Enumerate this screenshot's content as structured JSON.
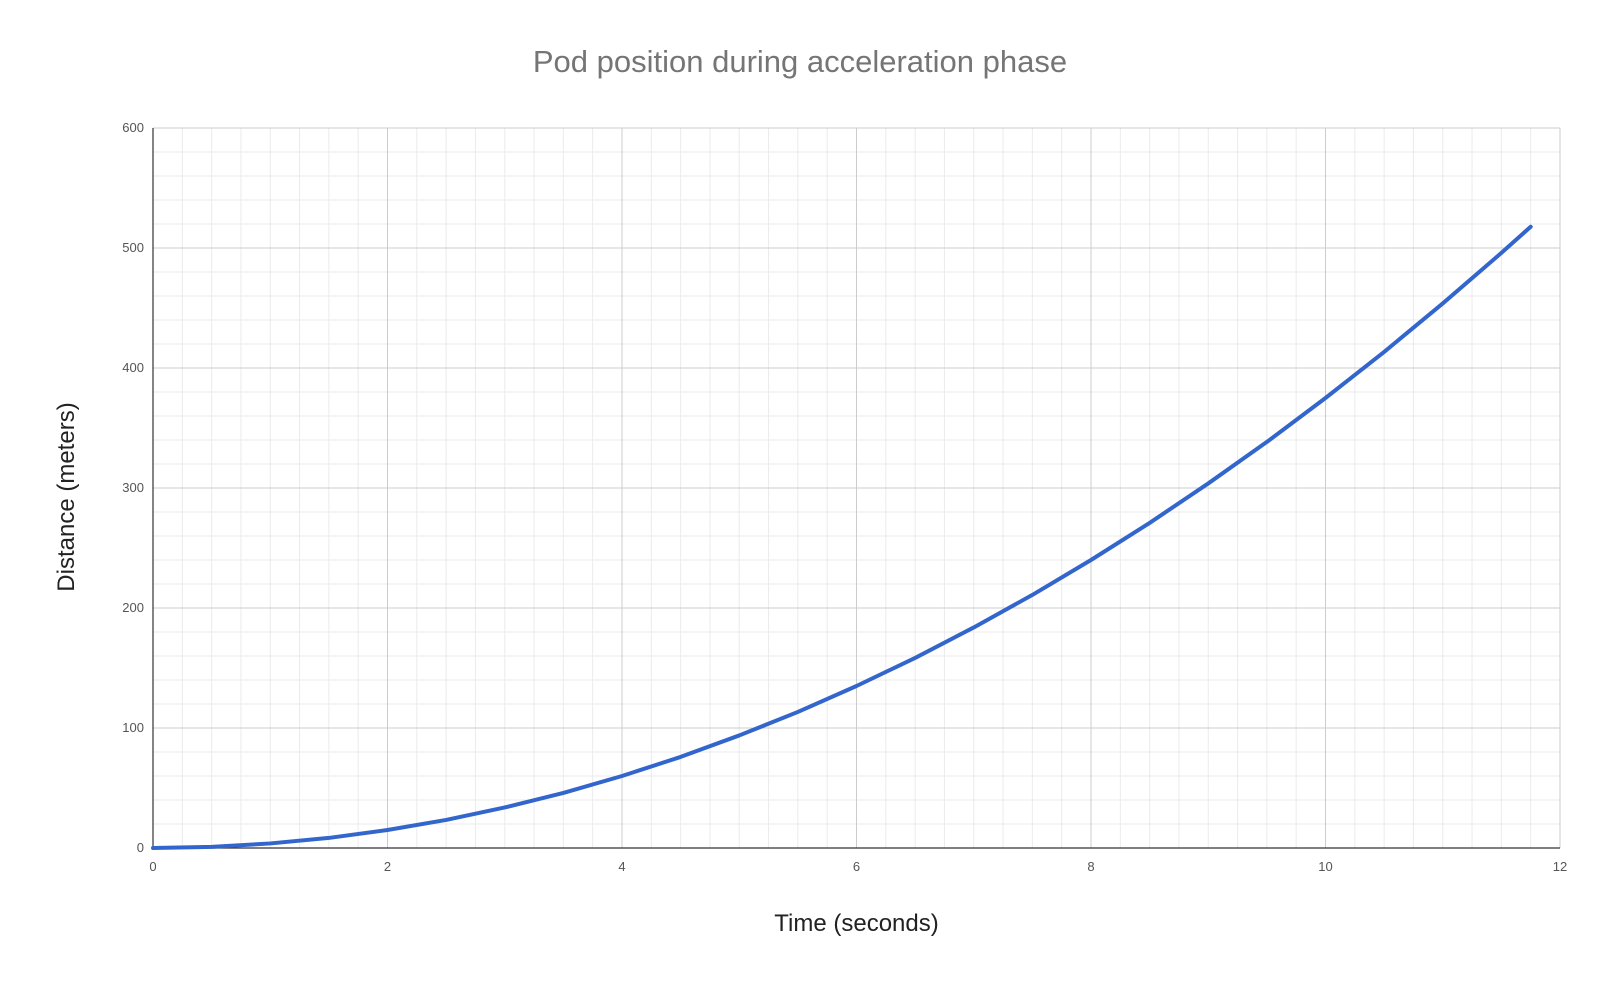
{
  "chart_data": {
    "type": "line",
    "title": "Pod position during acceleration phase",
    "xlabel": "Time (seconds)",
    "ylabel": "Distance (meters)",
    "xlim": [
      0,
      12
    ],
    "ylim": [
      0,
      600
    ],
    "x_ticks": [
      "0",
      "2",
      "4",
      "6",
      "8",
      "10",
      "12"
    ],
    "y_ticks": [
      "0",
      "100",
      "200",
      "300",
      "400",
      "500",
      "600"
    ],
    "grid": true,
    "legend": "none",
    "series": [
      {
        "color": "#3366cc",
        "x": [
          0,
          0.5,
          1,
          1.5,
          2,
          2.5,
          3,
          3.5,
          4,
          4.5,
          5,
          5.5,
          6,
          6.5,
          7,
          7.5,
          8,
          8.5,
          9,
          9.5,
          10,
          10.5,
          11,
          11.5,
          11.75
        ],
        "y": [
          0,
          0.9,
          3.8,
          8.4,
          15,
          23.4,
          33.8,
          45.9,
          60,
          75.9,
          93.8,
          113.4,
          135,
          158.4,
          183.8,
          210.9,
          240,
          270.9,
          303.8,
          338.4,
          375,
          413.4,
          453.8,
          495.9,
          517.7
        ]
      }
    ]
  }
}
